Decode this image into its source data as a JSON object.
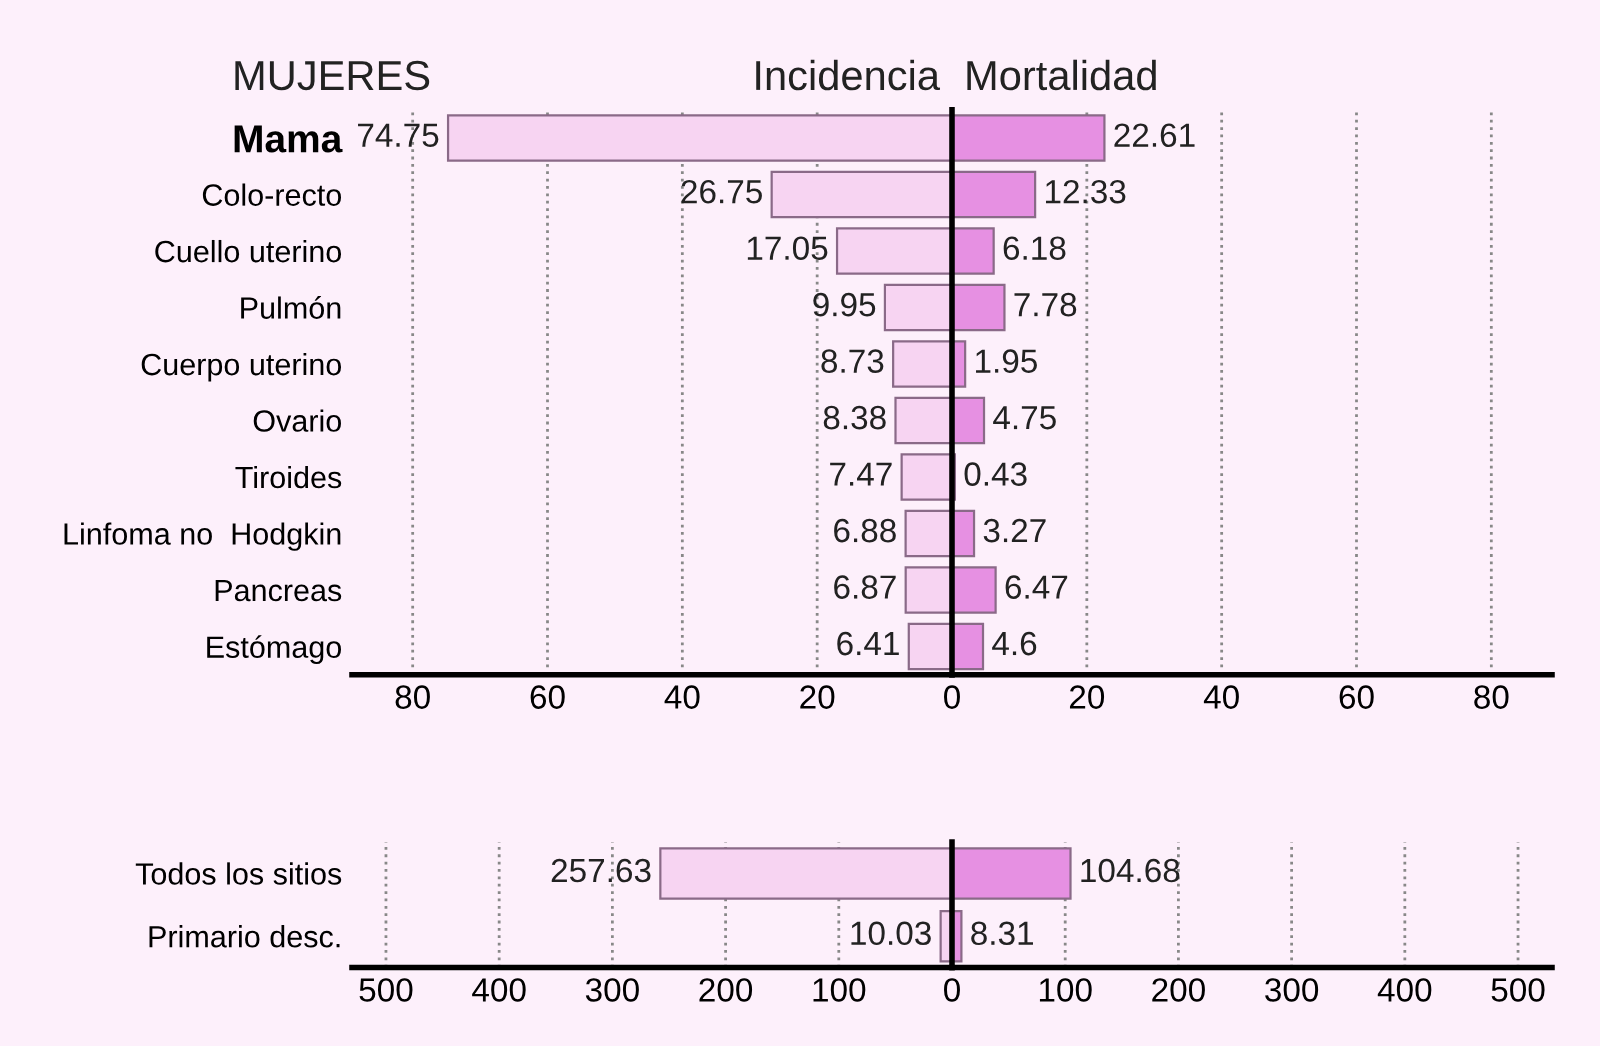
{
  "chart_data": [
    {
      "type": "bar",
      "orientation": "horizontal",
      "title": "Incidencia",
      "annotations": [
        "MUJERES"
      ],
      "categories": [
        "Mama",
        "Colo-recto",
        "Cuello uterino",
        "Pulmón",
        "Cuerpo uterino",
        "Ovario",
        "Tiroides",
        "Linfoma no  Hodgkin",
        "Pancreas",
        "Estómago"
      ],
      "values": [
        74.75,
        26.75,
        17.05,
        9.95,
        8.73,
        8.38,
        7.47,
        6.88,
        6.87,
        6.41
      ],
      "color": "#f7d4f2",
      "data_labels": true,
      "xlim": [
        89,
        0
      ],
      "xticks": [
        80,
        60,
        40,
        20
      ],
      "grid": "x"
    },
    {
      "type": "bar",
      "orientation": "horizontal",
      "title": "Mortalidad",
      "categories": [
        null,
        null,
        null,
        null,
        null,
        null,
        null,
        null,
        null,
        null
      ],
      "values": [
        22.61,
        12.33,
        6.18,
        7.78,
        1.95,
        4.75,
        0.43,
        3.27,
        6.47,
        4.6
      ],
      "color": "#e690e2",
      "data_labels": true,
      "xlim": [
        0,
        89
      ],
      "xticks": [
        0,
        20,
        40,
        60,
        80
      ],
      "grid": "x",
      "tick_labels": "x"
    },
    {
      "type": "bar",
      "orientation": "horizontal",
      "categories": [
        "Todos los sitios",
        "Primario desc."
      ],
      "values": [
        257.63,
        10.03
      ],
      "color": "#f7d4f2",
      "data_labels": true,
      "xlim": [
        530,
        0
      ],
      "xticks": [
        500,
        400,
        300,
        200,
        100
      ],
      "grid": "x"
    },
    {
      "type": "bar",
      "orientation": "horizontal",
      "categories": [
        null,
        null
      ],
      "values": [
        104.68,
        8.31
      ],
      "color": "#e690e2",
      "data_labels": true,
      "xlim": [
        0,
        530
      ],
      "xticks": [
        0,
        100,
        200,
        300,
        400,
        500
      ],
      "grid": "x",
      "tick_labels": "x"
    }
  ]
}
